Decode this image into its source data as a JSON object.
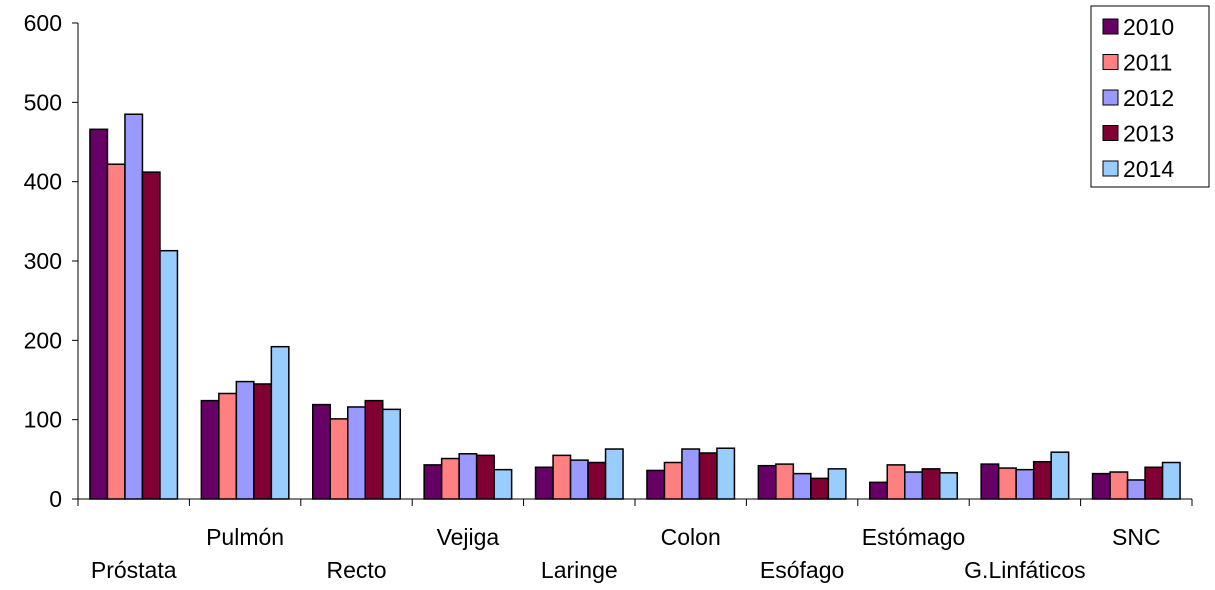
{
  "chart_data": {
    "type": "bar",
    "categories": [
      "Próstata",
      "Pulmón",
      "Recto",
      "Vejiga",
      "Laringe",
      "Colon",
      "Esófago",
      "Estómago",
      "G.Linfáticos",
      "SNC"
    ],
    "series": [
      {
        "name": "2010",
        "color": "#660066",
        "values": [
          466,
          124,
          119,
          43,
          40,
          36,
          42,
          21,
          44,
          32
        ]
      },
      {
        "name": "2011",
        "color": "#FF8080",
        "values": [
          422,
          133,
          101,
          51,
          55,
          46,
          44,
          43,
          39,
          34
        ]
      },
      {
        "name": "2012",
        "color": "#9999FF",
        "values": [
          485,
          148,
          116,
          57,
          49,
          63,
          32,
          34,
          37,
          24
        ]
      },
      {
        "name": "2013",
        "color": "#800033",
        "values": [
          412,
          145,
          124,
          55,
          46,
          58,
          26,
          38,
          47,
          40
        ]
      },
      {
        "name": "2014",
        "color": "#99CCFF",
        "values": [
          313,
          192,
          113,
          37,
          63,
          64,
          38,
          33,
          59,
          46
        ]
      }
    ],
    "yticks": [
      0,
      100,
      200,
      300,
      400,
      500,
      600
    ],
    "ylim": [
      0,
      600
    ],
    "title": "",
    "xlabel": "",
    "ylabel": "",
    "grid": false,
    "legend_position": "top-right"
  }
}
